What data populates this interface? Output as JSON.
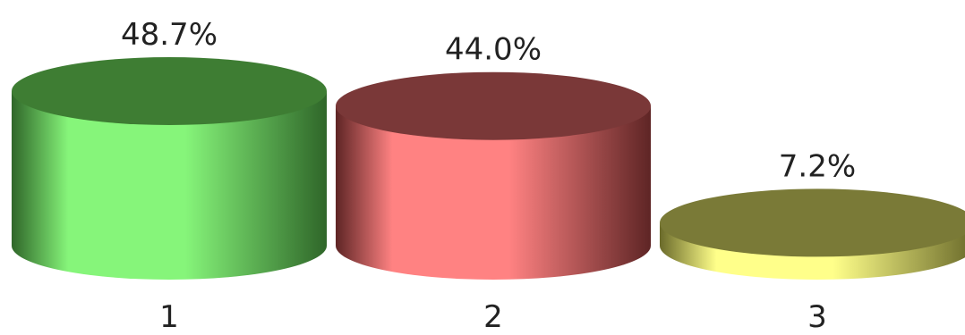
{
  "chart_data": {
    "type": "bar",
    "style": "3d-cylinder",
    "categories": [
      "1",
      "2",
      "3"
    ],
    "values": [
      48.7,
      44.0,
      7.2
    ],
    "value_labels": [
      "48.7%",
      "44.0%",
      "7.2%"
    ],
    "unit": "%",
    "title": "",
    "xlabel": "",
    "ylabel": "",
    "ylim": [
      0,
      48.7
    ],
    "grid": false,
    "legend": "none",
    "colors": [
      {
        "top": "#3e7d33",
        "body_light": "#86f57a",
        "body_dark": "#2f6629"
      },
      {
        "top": "#7a3838",
        "body_light": "#ff8282",
        "body_dark": "#5e2525"
      },
      {
        "top": "#7a7a37",
        "body_light": "#ffff8a",
        "body_dark": "#6a6a2a"
      }
    ]
  }
}
